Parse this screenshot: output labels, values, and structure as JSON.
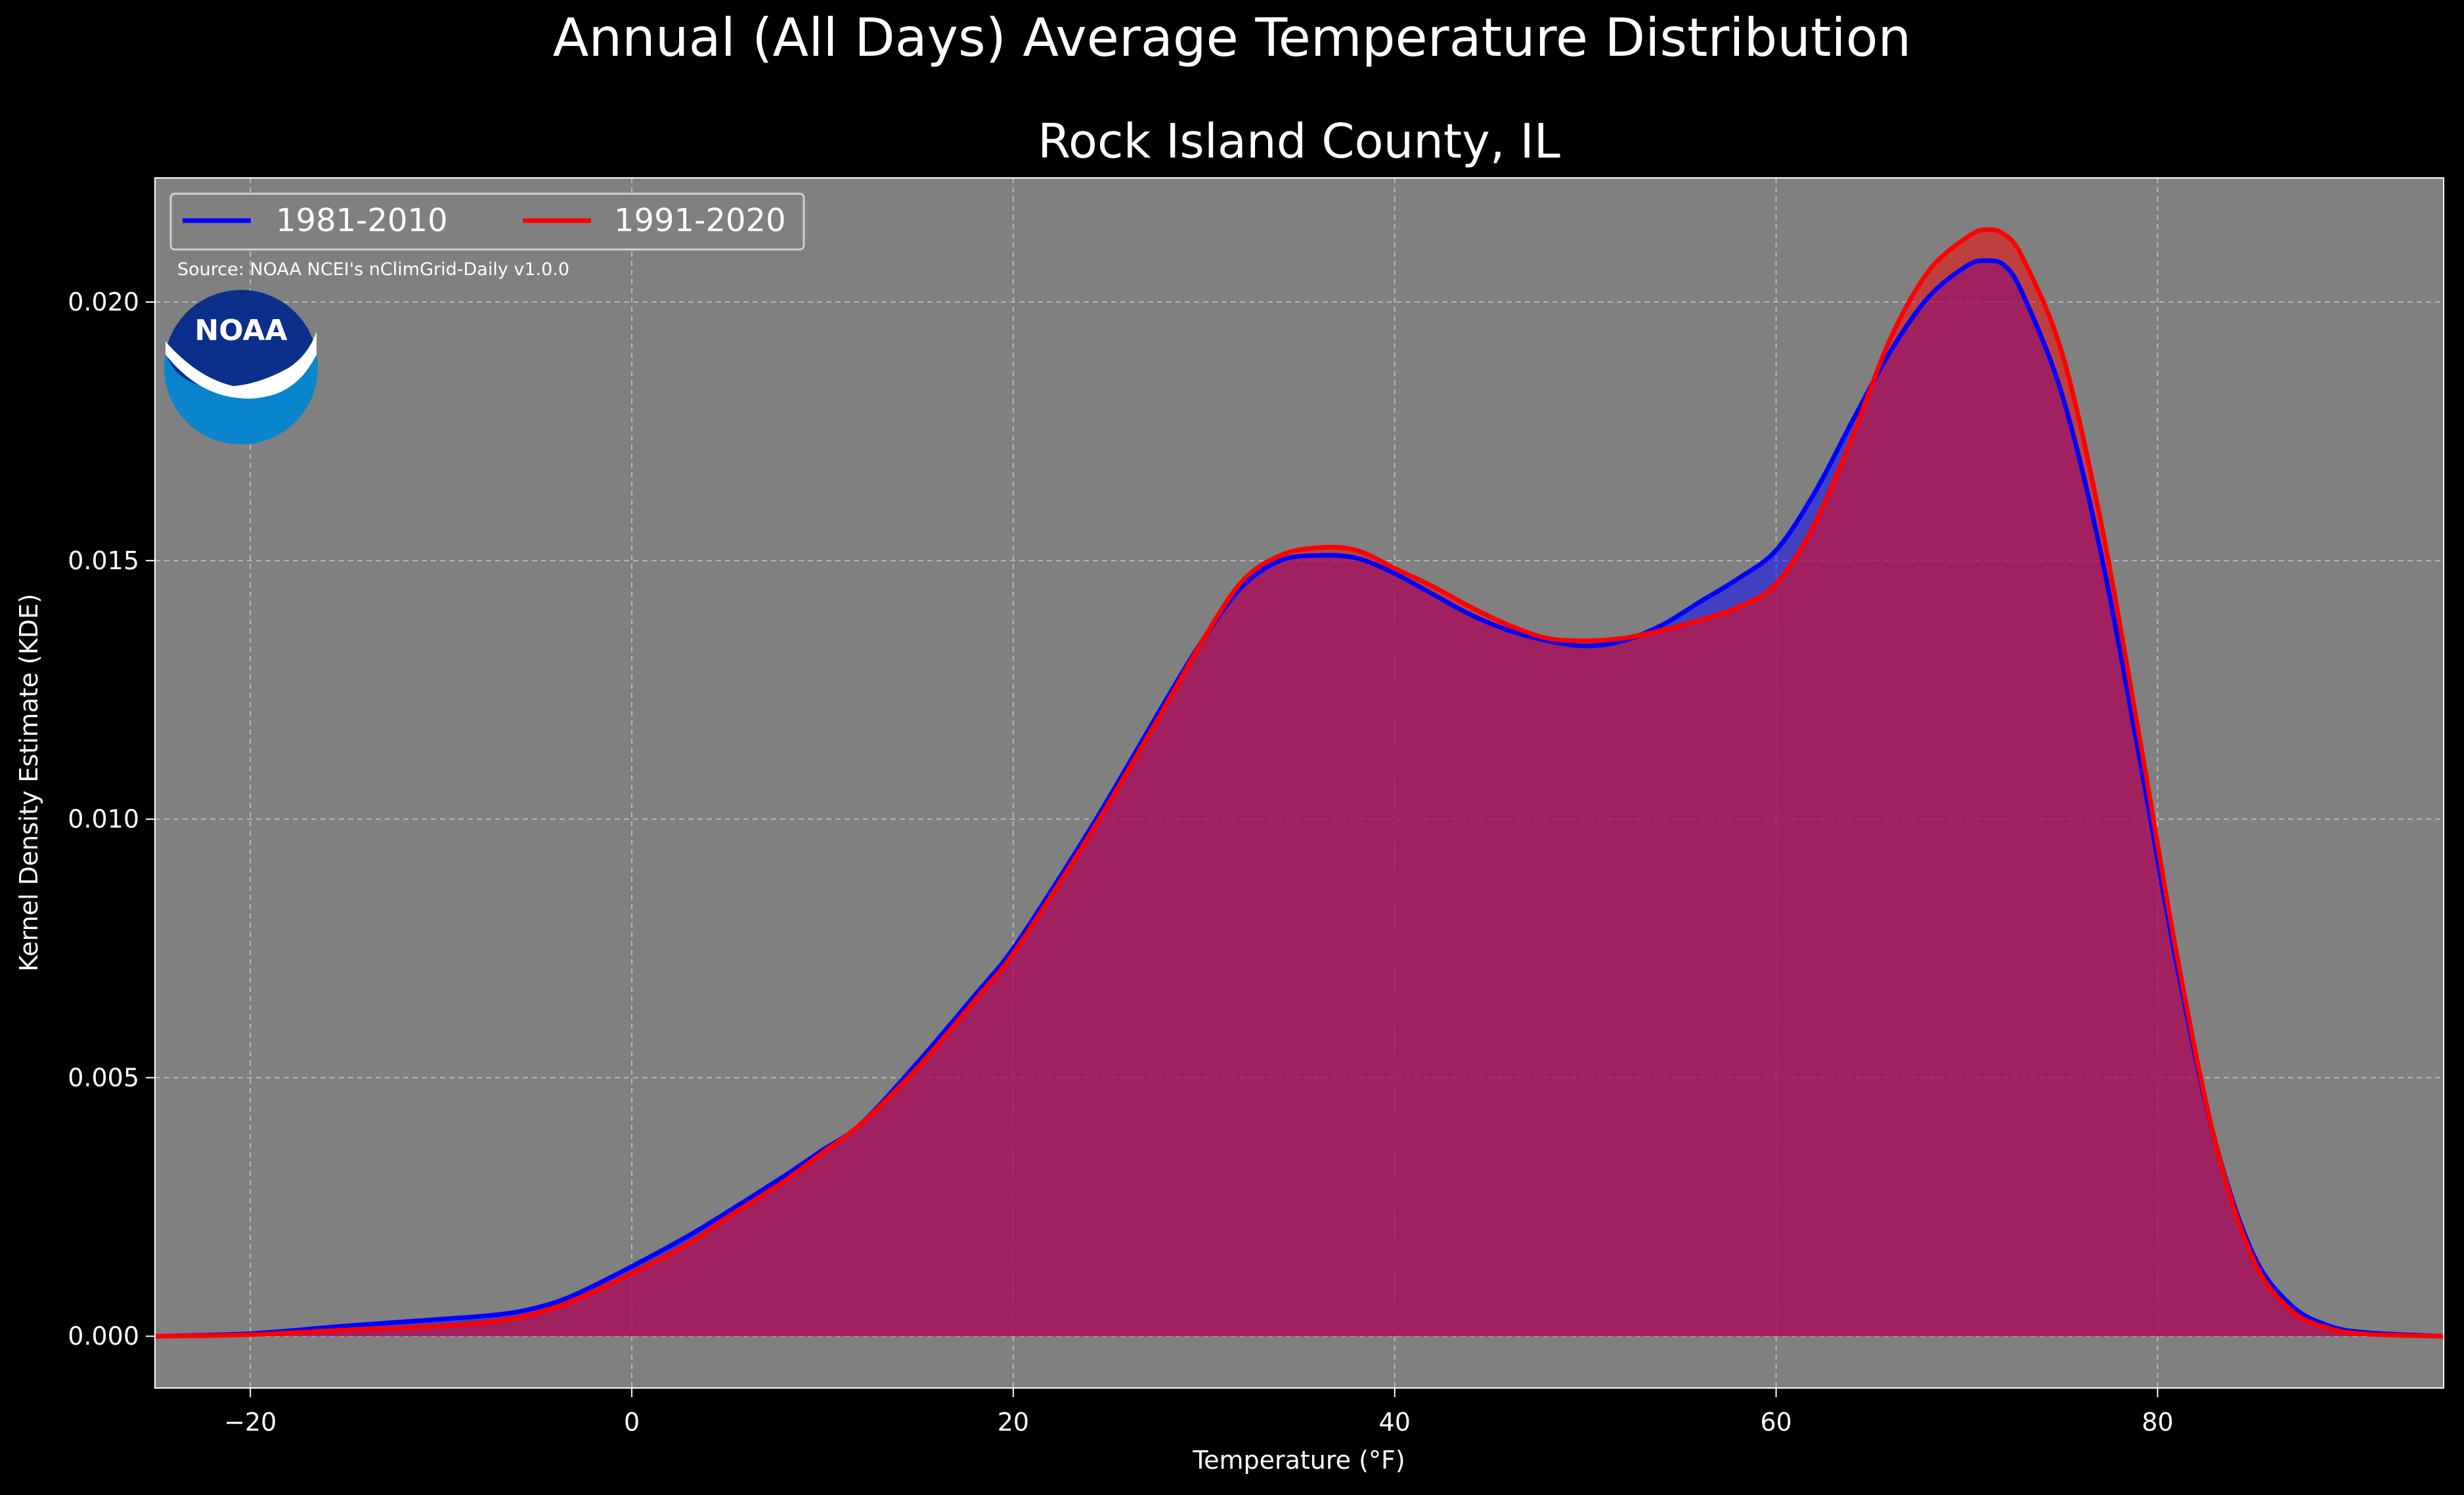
{
  "chart_data": {
    "type": "area",
    "suptitle": "Annual (All Days) Average Temperature Distribution",
    "title": "Rock Island County, IL",
    "xlabel": "Temperature ($^\\circ$F)",
    "xlabel_display": "Temperature (°F)",
    "ylabel": "Kernel Density Estimate (KDE)",
    "xlim": [
      -25,
      95
    ],
    "ylim": [
      -0.001,
      0.0224
    ],
    "x_ticks": [
      -20,
      0,
      20,
      40,
      60,
      80
    ],
    "x_tick_labels": [
      "−20",
      "0",
      "20",
      "40",
      "60",
      "80"
    ],
    "y_ticks": [
      0.0,
      0.005,
      0.01,
      0.015,
      0.02
    ],
    "y_tick_labels": [
      "0.000",
      "0.005",
      "0.010",
      "0.015",
      "0.020"
    ],
    "grid": true,
    "legend_position": "top-left",
    "source_note": "Source: NOAA NCEI's nClimGrid-Daily v1.0.0",
    "logo_text": "NOAA",
    "colors": {
      "figure_background": "#000000",
      "axes_background": "#808080",
      "text": "#ffffff",
      "noaa_dark": "#0b2f8a",
      "noaa_light": "#0a84cc"
    },
    "series": [
      {
        "name": "1981-2010",
        "color": "#0000ff",
        "fill": "#0000ff",
        "x": [
          -25,
          -20,
          -15,
          -10,
          -7,
          -5,
          -3,
          0,
          3,
          5,
          8,
          10,
          12,
          15,
          18,
          20,
          23,
          25,
          28,
          30,
          32,
          34,
          36,
          38,
          40,
          42,
          44,
          46,
          48,
          50,
          52,
          54,
          56,
          58,
          60,
          62,
          64,
          66,
          68,
          70,
          71,
          72,
          73,
          75,
          77,
          79,
          81,
          83,
          85,
          87,
          89,
          91,
          95
        ],
        "y": [
          0.0,
          5e-05,
          0.0002,
          0.00033,
          0.00042,
          0.00055,
          0.0008,
          0.00135,
          0.00195,
          0.0024,
          0.0031,
          0.0036,
          0.0041,
          0.0053,
          0.0066,
          0.0075,
          0.0092,
          0.0104,
          0.0123,
          0.0135,
          0.0145,
          0.015,
          0.0151,
          0.01505,
          0.01475,
          0.01435,
          0.01395,
          0.01365,
          0.01345,
          0.01335,
          0.01345,
          0.01375,
          0.0142,
          0.01465,
          0.0152,
          0.0163,
          0.0177,
          0.01905,
          0.0201,
          0.0207,
          0.0208,
          0.0207,
          0.0201,
          0.0182,
          0.0152,
          0.0113,
          0.0072,
          0.0038,
          0.0016,
          0.0006,
          0.0002,
          7e-05,
          0.0
        ]
      },
      {
        "name": "1991-2020",
        "color": "#ff0000",
        "fill": "#ff0000",
        "x": [
          -25,
          -20,
          -15,
          -10,
          -7,
          -5,
          -3,
          0,
          3,
          5,
          8,
          10,
          12,
          15,
          18,
          20,
          23,
          25,
          28,
          30,
          32,
          34,
          36,
          38,
          40,
          42,
          44,
          46,
          48,
          50,
          52,
          54,
          56,
          58,
          60,
          62,
          64,
          66,
          68,
          70,
          71,
          72,
          73,
          75,
          77,
          79,
          81,
          83,
          85,
          87,
          89,
          91,
          95
        ],
        "y": [
          0.0,
          3e-05,
          0.00012,
          0.0002,
          0.0003,
          0.00045,
          0.0007,
          0.00122,
          0.0018,
          0.0023,
          0.003,
          0.00355,
          0.0041,
          0.0052,
          0.0065,
          0.0074,
          0.0091,
          0.0103,
          0.0122,
          0.0135,
          0.0146,
          0.0151,
          0.01525,
          0.0152,
          0.01485,
          0.0145,
          0.0141,
          0.01375,
          0.0135,
          0.01345,
          0.0135,
          0.01365,
          0.01385,
          0.0141,
          0.01455,
          0.0157,
          0.0174,
          0.0193,
          0.0206,
          0.02125,
          0.0214,
          0.0213,
          0.0208,
          0.019,
          0.0158,
          0.0117,
          0.0074,
          0.0038,
          0.0015,
          0.0005,
          0.00015,
          4e-05,
          0.0
        ]
      }
    ]
  }
}
